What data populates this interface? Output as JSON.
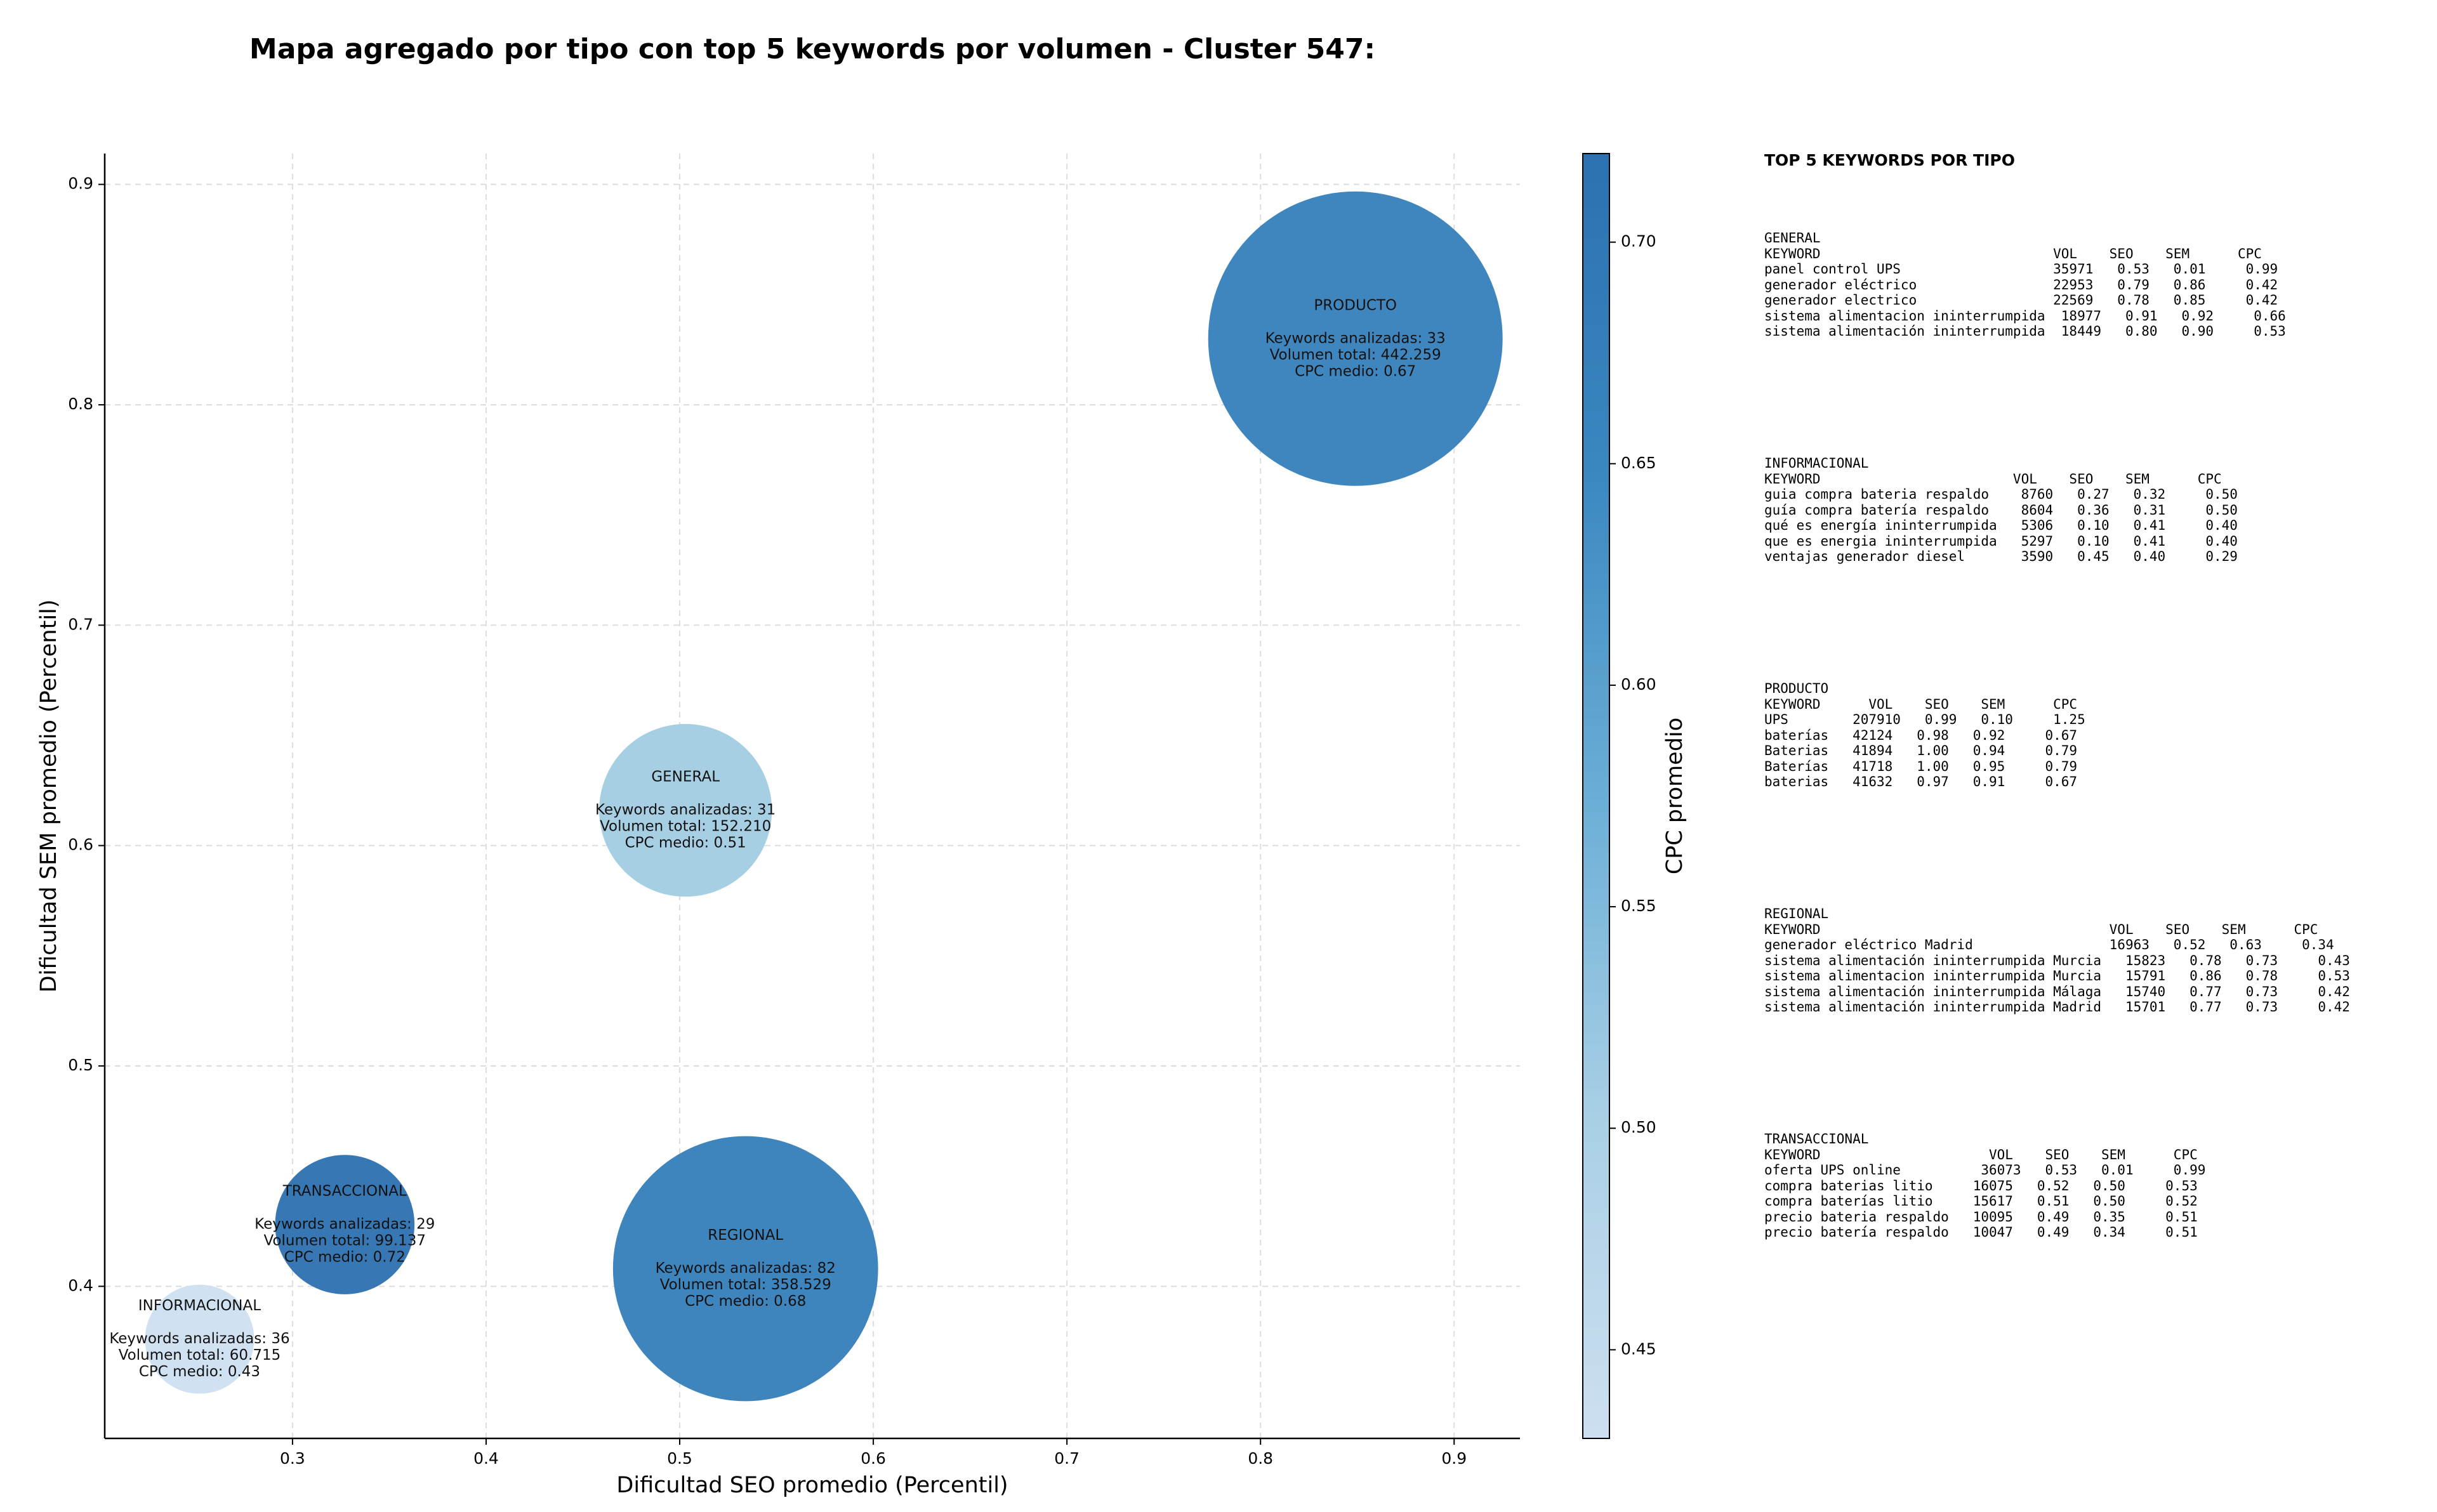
{
  "chart_data": {
    "type": "scatter",
    "title": "Mapa agregado por tipo con top 5 keywords por volumen - Cluster 547:",
    "xlabel": "Dificultad SEO promedio (Percentil)",
    "ylabel": "Dificultad SEM promedio (Percentil)",
    "xlim": [
      0.203,
      0.934
    ],
    "ylim": [
      0.331,
      0.914
    ],
    "xticks": [
      "0.3",
      "0.4",
      "0.5",
      "0.6",
      "0.7",
      "0.8",
      "0.9"
    ],
    "yticks": [
      "0.4",
      "0.5",
      "0.6",
      "0.7",
      "0.8",
      "0.9"
    ],
    "grid": true,
    "colorbar": {
      "label": "CPC promedio",
      "range": [
        0.43,
        0.72
      ],
      "ticks": [
        "0.45",
        "0.50",
        "0.55",
        "0.60",
        "0.65",
        "0.70"
      ],
      "colors": [
        "#cddff0",
        "#a9cfe5",
        "#6aaed6",
        "#3b87c0",
        "#2c71b0"
      ]
    },
    "points": [
      {
        "name": "INFORMACIONAL",
        "x": 0.252,
        "y": 0.376,
        "keywords_line": "Keywords analizadas: 36",
        "volume_line": "Volumen total: 60.715",
        "cpc_line": "CPC medio: 0.43",
        "cpc": 0.43,
        "volume": 60715
      },
      {
        "name": "TRANSACCIONAL",
        "x": 0.327,
        "y": 0.428,
        "keywords_line": "Keywords analizadas: 29",
        "volume_line": "Volumen total: 99.137",
        "cpc_line": "CPC medio: 0.72",
        "cpc": 0.72,
        "volume": 99137
      },
      {
        "name": "GENERAL",
        "x": 0.503,
        "y": 0.616,
        "keywords_line": "Keywords analizadas: 31",
        "volume_line": "Volumen total: 152.210",
        "cpc_line": "CPC medio: 0.51",
        "cpc": 0.51,
        "volume": 152210
      },
      {
        "name": "REGIONAL",
        "x": 0.534,
        "y": 0.408,
        "keywords_line": "Keywords analizadas: 82",
        "volume_line": "Volumen total: 358.529",
        "cpc_line": "CPC medio: 0.68",
        "cpc": 0.68,
        "volume": 358529
      },
      {
        "name": "PRODUCTO",
        "x": 0.849,
        "y": 0.83,
        "keywords_line": "Keywords analizadas: 33",
        "volume_line": "Volumen total: 442.259",
        "cpc_line": "CPC medio: 0.67",
        "cpc": 0.67,
        "volume": 442259
      }
    ]
  },
  "panel": {
    "title": "TOP 5 KEYWORDS POR TIPO",
    "blocks": [
      {
        "lines": [
          "GENERAL",
          "KEYWORD                             VOL    SEO    SEM      CPC",
          "panel control UPS                   35971   0.53   0.01     0.99",
          "generador eléctrico                 22953   0.79   0.86     0.42",
          "generador electrico                 22569   0.78   0.85     0.42",
          "sistema alimentacion ininterrumpida  18977   0.91   0.92     0.66",
          "sistema alimentación ininterrumpida  18449   0.80   0.90     0.53"
        ]
      },
      {
        "lines": [
          "INFORMACIONAL",
          "KEYWORD                        VOL    SEO    SEM      CPC",
          "guia compra bateria respaldo    8760   0.27   0.32     0.50",
          "guía compra batería respaldo    8604   0.36   0.31     0.50",
          "qué es energía ininterrumpida   5306   0.10   0.41     0.40",
          "que es energia ininterrumpida   5297   0.10   0.41     0.40",
          "ventajas generador diesel       3590   0.45   0.40     0.29"
        ]
      },
      {
        "lines": [
          "PRODUCTO",
          "KEYWORD      VOL    SEO    SEM      CPC",
          "UPS        207910   0.99   0.10     1.25",
          "baterías   42124   0.98   0.92     0.67",
          "Baterias   41894   1.00   0.94     0.79",
          "Baterías   41718   1.00   0.95     0.79",
          "baterias   41632   0.97   0.91     0.67"
        ]
      },
      {
        "lines": [
          "REGIONAL",
          "KEYWORD                                    VOL    SEO    SEM      CPC",
          "generador eléctrico Madrid                 16963   0.52   0.63     0.34",
          "sistema alimentación ininterrumpida Murcia   15823   0.78   0.73     0.43",
          "sistema alimentacion ininterrumpida Murcia   15791   0.86   0.78     0.53",
          "sistema alimentación ininterrumpida Málaga   15740   0.77   0.73     0.42",
          "sistema alimentación ininterrumpida Madrid   15701   0.77   0.73     0.42"
        ]
      },
      {
        "lines": [
          "TRANSACCIONAL",
          "KEYWORD                     VOL    SEO    SEM      CPC",
          "oferta UPS online          36073   0.53   0.01     0.99",
          "compra baterias litio     16075   0.52   0.50     0.53",
          "compra baterías litio     15617   0.51   0.50     0.52",
          "precio bateria respaldo   10095   0.49   0.35     0.51",
          "precio batería respaldo   10047   0.49   0.34     0.51"
        ]
      }
    ]
  }
}
